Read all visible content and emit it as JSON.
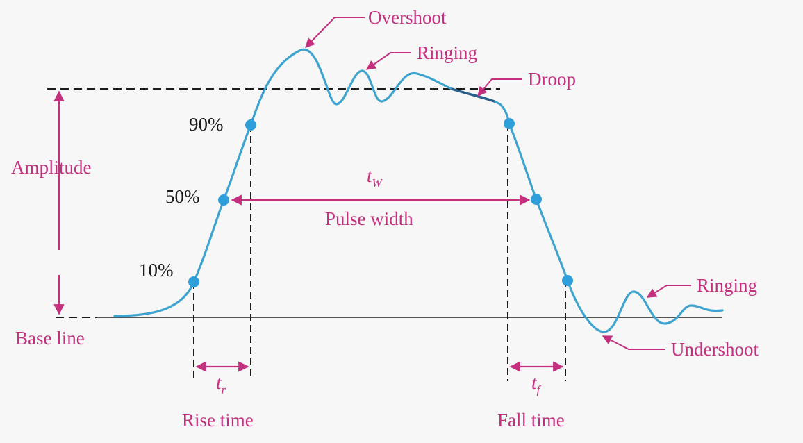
{
  "labels": {
    "overshoot": "Overshoot",
    "ringing_top": "Ringing",
    "droop": "Droop",
    "amplitude": "Amplitude",
    "p90": "90%",
    "p50": "50%",
    "p10": "10%",
    "base_line": "Base line",
    "pulse_width_symbol": "t",
    "pulse_width_subscript": "W",
    "pulse_width": "Pulse width",
    "ringing_right": "Ringing",
    "undershoot": "Undershoot",
    "rise_symbol": "t",
    "rise_subscript": "r",
    "rise_time": "Rise time",
    "fall_symbol": "t",
    "fall_subscript": "f",
    "fall_time": "Fall time"
  },
  "colors": {
    "waveform": "#3ea3cf",
    "marker": "#2f9fdc",
    "annotation": "#c4307e",
    "text": "#1b1b1b",
    "guide": "#1b1b1b",
    "background": "#f7f7f8"
  }
}
